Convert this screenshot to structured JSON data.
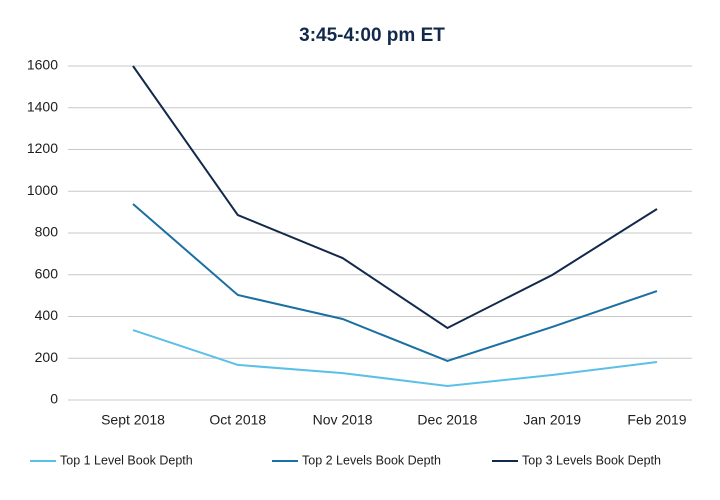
{
  "chart_data": {
    "type": "line",
    "title": "3:45-4:00 pm ET",
    "categories": [
      "Sept 2018",
      "Oct 2018",
      "Nov 2018",
      "Dec 2018",
      "Jan 2019",
      "Feb 2019"
    ],
    "series": [
      {
        "name": "Top 1 Level Book Depth",
        "color": "#5bc0e8",
        "values": [
          335,
          168,
          129,
          67,
          120,
          182
        ]
      },
      {
        "name": "Top 2 Levels Book Depth",
        "color": "#1a6fa3",
        "values": [
          939,
          503,
          388,
          187,
          350,
          522
        ]
      },
      {
        "name": "Top 3 Levels Book Depth",
        "color": "#13294b",
        "values": [
          1600,
          886,
          680,
          345,
          599,
          915
        ]
      }
    ],
    "ylim": [
      0,
      1600
    ],
    "yticks": [
      0,
      200,
      400,
      600,
      800,
      1000,
      1200,
      1400,
      1600
    ],
    "grid": true
  }
}
